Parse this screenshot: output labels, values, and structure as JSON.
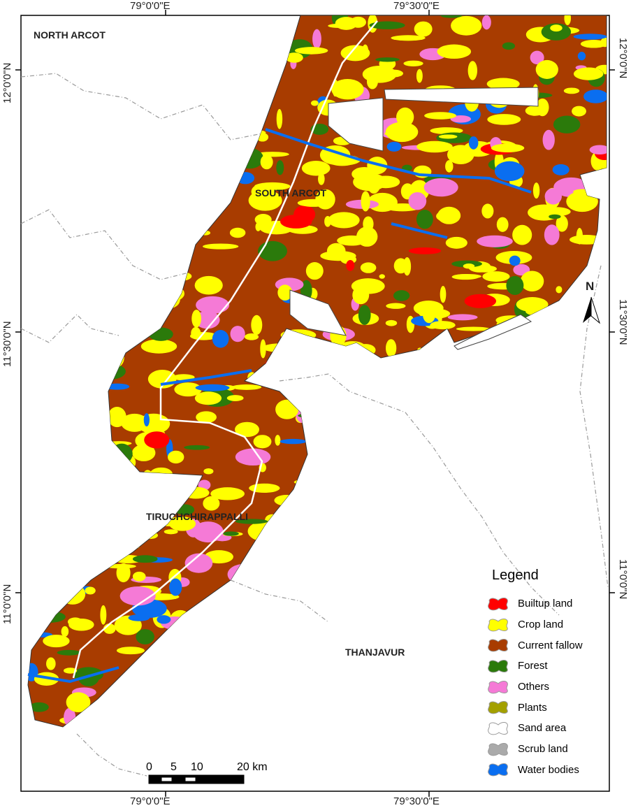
{
  "map": {
    "longitude_labels": [
      "79°0'0\"E",
      "79°30'0\"E"
    ],
    "latitude_labels": [
      "12°0'0\"N",
      "11°30'0\"N",
      "11°0'0\"N"
    ],
    "place_labels": {
      "north_arcot": "NORTH ARCOT",
      "south_arcot": "SOUTH ARCOT",
      "tiruchchirappalli": "TIRUCHCHIRAPPALLI",
      "thanjavur": "THANJAVUR"
    },
    "north_arrow": "N",
    "scale_bar": {
      "ticks": [
        "0",
        "5",
        "10",
        "20 km"
      ]
    }
  },
  "legend": {
    "title": "Legend",
    "items": [
      {
        "label": "Builtup land",
        "color": "#ff0000"
      },
      {
        "label": "Crop land",
        "color": "#ffff00"
      },
      {
        "label": "Current fallow",
        "color": "#a83c00"
      },
      {
        "label": "Forest",
        "color": "#2b7a0b"
      },
      {
        "label": "Others",
        "color": "#f57ad6"
      },
      {
        "label": "Plants",
        "color": "#a3a000"
      },
      {
        "label": "Sand area",
        "color": "#ffffff"
      },
      {
        "label": "Scrub land",
        "color": "#aaaaaa"
      },
      {
        "label": "Water bodies",
        "color": "#0a6ef0"
      }
    ]
  }
}
